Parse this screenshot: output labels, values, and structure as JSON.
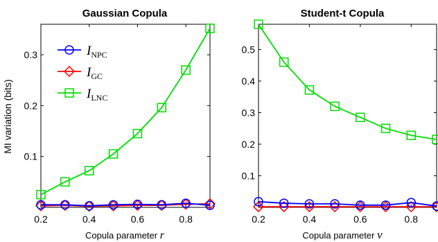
{
  "colors": {
    "NPC": "#0000ff",
    "GC": "#ff0000",
    "LNC": "#00dd00",
    "axis": "#000000"
  },
  "chart_data": [
    {
      "type": "line",
      "title": "Gaussian Copula",
      "xlabel_text": "Copula parameter ",
      "xlabel_symbol": "r",
      "ylabel": "MI variation (bits)",
      "xlim": [
        0.2,
        0.9
      ],
      "ylim": [
        0,
        0.36
      ],
      "xticks": [
        0.2,
        0.4,
        0.6,
        0.8
      ],
      "xtick_labels": [
        "0.2",
        "0.4",
        "0.6",
        "0.8"
      ],
      "yticks": [
        0.1,
        0.2,
        0.3
      ],
      "ytick_labels": [
        "0.1",
        "0.2",
        "0.3"
      ],
      "legend_placement": "top-left",
      "x": [
        0.2,
        0.3,
        0.4,
        0.5,
        0.6,
        0.7,
        0.8,
        0.9
      ],
      "series": [
        {
          "key": "NPC",
          "name": "I",
          "sub": "NPC",
          "marker": "circle",
          "values": [
            0.005,
            0.005,
            0.003,
            0.005,
            0.006,
            0.005,
            0.008,
            0.004
          ]
        },
        {
          "key": "GC",
          "name": "I",
          "sub": "GC",
          "marker": "diamond",
          "values": [
            0.003,
            0.004,
            0.002,
            0.003,
            0.004,
            0.004,
            0.006,
            0.007
          ]
        },
        {
          "key": "LNC",
          "name": "I",
          "sub": "LNC",
          "marker": "square",
          "values": [
            0.025,
            0.05,
            0.072,
            0.105,
            0.145,
            0.196,
            0.27,
            0.352
          ]
        }
      ]
    },
    {
      "type": "line",
      "title": "Student-t Copula",
      "xlabel_text": "Copula parameter ",
      "xlabel_symbol": "ν",
      "ylabel": "",
      "xlim": [
        0.2,
        0.9
      ],
      "ylim": [
        0,
        0.58
      ],
      "xticks": [
        0.2,
        0.4,
        0.6,
        0.8
      ],
      "xtick_labels": [
        "0.2",
        "0.4",
        "0.6",
        "0.8"
      ],
      "yticks": [
        0.1,
        0.2,
        0.3,
        0.4,
        0.5
      ],
      "ytick_labels": [
        "0.1",
        "0.2",
        "0.3",
        "0.4",
        "0.5"
      ],
      "x": [
        0.2,
        0.3,
        0.4,
        0.5,
        0.6,
        0.7,
        0.8,
        0.9
      ],
      "series": [
        {
          "key": "NPC",
          "name": "I",
          "sub": "NPC",
          "marker": "circle",
          "values": [
            0.018,
            0.013,
            0.011,
            0.011,
            0.007,
            0.007,
            0.015,
            0.004
          ]
        },
        {
          "key": "GC",
          "name": "I",
          "sub": "GC",
          "marker": "diamond",
          "values": [
            0.002,
            0.002,
            0.002,
            0.002,
            0.002,
            0.002,
            0.002,
            0.002
          ]
        },
        {
          "key": "LNC",
          "name": "I",
          "sub": "LNC",
          "marker": "square",
          "values": [
            0.58,
            0.46,
            0.372,
            0.32,
            0.285,
            0.25,
            0.228,
            0.215
          ]
        }
      ]
    }
  ]
}
